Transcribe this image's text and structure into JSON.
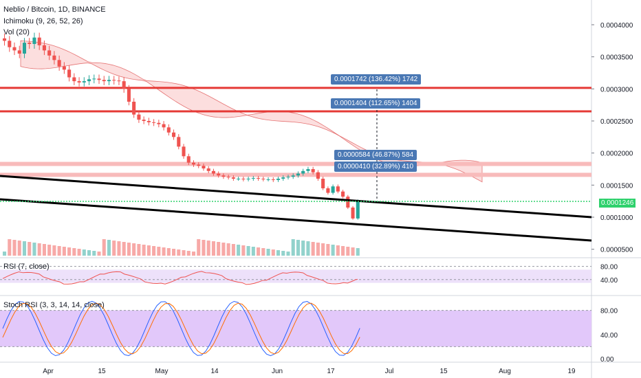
{
  "header": {
    "symbol_line": "Neblio / Bitcoin, 1D, BINANCE",
    "ichimoku": "Ichimoku (9, 26, 52, 26)",
    "vol": "Vol (20)"
  },
  "panes": {
    "rsi_label": "RSI (7, close)",
    "stoch_label": "Stoch RSI (3, 3, 14, 14, close)"
  },
  "last_price": "0.0001246",
  "measure_boxes": [
    {
      "text": "0.0001742 (136.42%) 1742"
    },
    {
      "text": "0.0001404 (112.65%) 1404"
    },
    {
      "text": "0.0000584 (46.87%) 584"
    },
    {
      "text": "0.0000410 (32.89%) 410"
    }
  ],
  "colors": {
    "up": "#26a69a",
    "down": "#ef5350",
    "resistance": "#e53935",
    "support_band": "#f8bbbb",
    "trendline": "#000000",
    "last_price": "#2ed16c",
    "rsi_band": "#ede1fa",
    "stoch_band": "#e2c8fa",
    "k_line": "#2962ff",
    "d_line": "#ff6d00",
    "kumo_bull": "#c8e6c9",
    "kumo_bear": "#fbd0d0"
  },
  "chart_data": {
    "type": "candlestick",
    "price_axis": {
      "ticks": [
        "0.0004000",
        "0.0003500",
        "0.0003000",
        "0.0002500",
        "0.0002000",
        "0.0001500",
        "0.0001000",
        "0.0000500"
      ],
      "range": [
        4e-05,
        0.00043
      ]
    },
    "time_axis": {
      "ticks": [
        "Apr",
        "15",
        "May",
        "14",
        "Jun",
        "17",
        "Jul",
        "15",
        "Aug",
        "19"
      ]
    },
    "rsi_axis": {
      "ticks": [
        "80.00",
        "40.00"
      ],
      "band": [
        30,
        70
      ],
      "last": 41
    },
    "stoch_axis": {
      "ticks": [
        "80.00",
        "40.00",
        "0.00"
      ],
      "band": [
        20,
        80
      ]
    },
    "levels": {
      "resistance_1": 0.0003015,
      "resistance_2": 0.000265,
      "support_zone_top": 0.000183,
      "support_zone_bottom": 0.000166,
      "last_price": 0.0001246
    },
    "closes": [
      0.000375,
      0.000365,
      0.00036,
      0.000355,
      0.000372,
      0.00037,
      0.00038,
      0.000368,
      0.00036,
      0.000352,
      0.000345,
      0.000335,
      0.00033,
      0.000318,
      0.000312,
      0.00031,
      0.000312,
      0.000315,
      0.000316,
      0.000314,
      0.000312,
      0.000314,
      0.000313,
      0.000312,
      0.0003,
      0.00028,
      0.00026,
      0.000252,
      0.00025,
      0.000248,
      0.000247,
      0.000245,
      0.00024,
      0.000232,
      0.000225,
      0.00021,
      0.000195,
      0.000185,
      0.000182,
      0.00018,
      0.000176,
      0.000172,
      0.000168,
      0.000165,
      0.000163,
      0.000162,
      0.00016,
      0.00016,
      0.000159,
      0.00016,
      0.000161,
      0.00016,
      0.000159,
      0.000159,
      0.000158,
      0.00016,
      0.000162,
      0.000163,
      0.000165,
      0.000168,
      0.000172,
      0.000175,
      0.00017,
      0.00016,
      0.000145,
      0.000138,
      0.000148,
      0.00014,
      0.000132,
      0.000115,
      9.8e-05,
      0.000125
    ]
  }
}
